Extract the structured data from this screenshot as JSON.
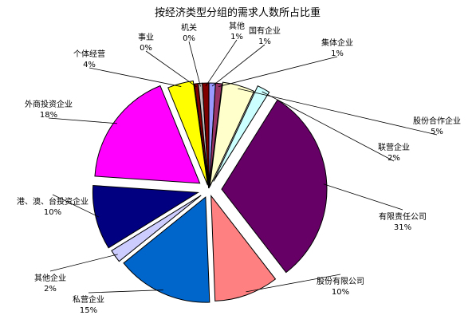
{
  "chart_data": {
    "type": "pie",
    "title": "按经济类型分组的需求人数所占比重",
    "slices": [
      {
        "name": "国有企业",
        "value": 1,
        "label": "1%",
        "color": "#9999ff"
      },
      {
        "name": "集体企业",
        "value": 1,
        "label": "1%",
        "color": "#993366"
      },
      {
        "name": "股份合作企业",
        "value": 5,
        "label": "5%",
        "color": "#ffffcc"
      },
      {
        "name": "联营企业",
        "value": 2,
        "label": "2%",
        "color": "#ccffff"
      },
      {
        "name": "有限责任公司",
        "value": 31,
        "label": "31%",
        "color": "#660066"
      },
      {
        "name": "股份有限公司",
        "value": 10,
        "label": "10%",
        "color": "#ff8080"
      },
      {
        "name": "私营企业",
        "value": 15,
        "label": "15%",
        "color": "#0066cc"
      },
      {
        "name": "其他企业",
        "value": 2,
        "label": "2%",
        "color": "#ccccff"
      },
      {
        "name": "港、澳、台投资企业",
        "value": 10,
        "label": "10%",
        "color": "#000080"
      },
      {
        "name": "外商投资企业",
        "value": 18,
        "label": "18%",
        "color": "#ff00ff"
      },
      {
        "name": "个体经营",
        "value": 4,
        "label": "4%",
        "color": "#ffff00"
      },
      {
        "name": "事业",
        "value": 0,
        "label": "0%",
        "color": "#800000"
      },
      {
        "name": "机关",
        "value": 0,
        "label": "0%",
        "color": "#c0c0c0"
      },
      {
        "name": "其他",
        "value": 1,
        "label": "1%",
        "color": "#800000"
      }
    ],
    "legend": "none",
    "data_labels": "outside-with-leader-lines"
  }
}
